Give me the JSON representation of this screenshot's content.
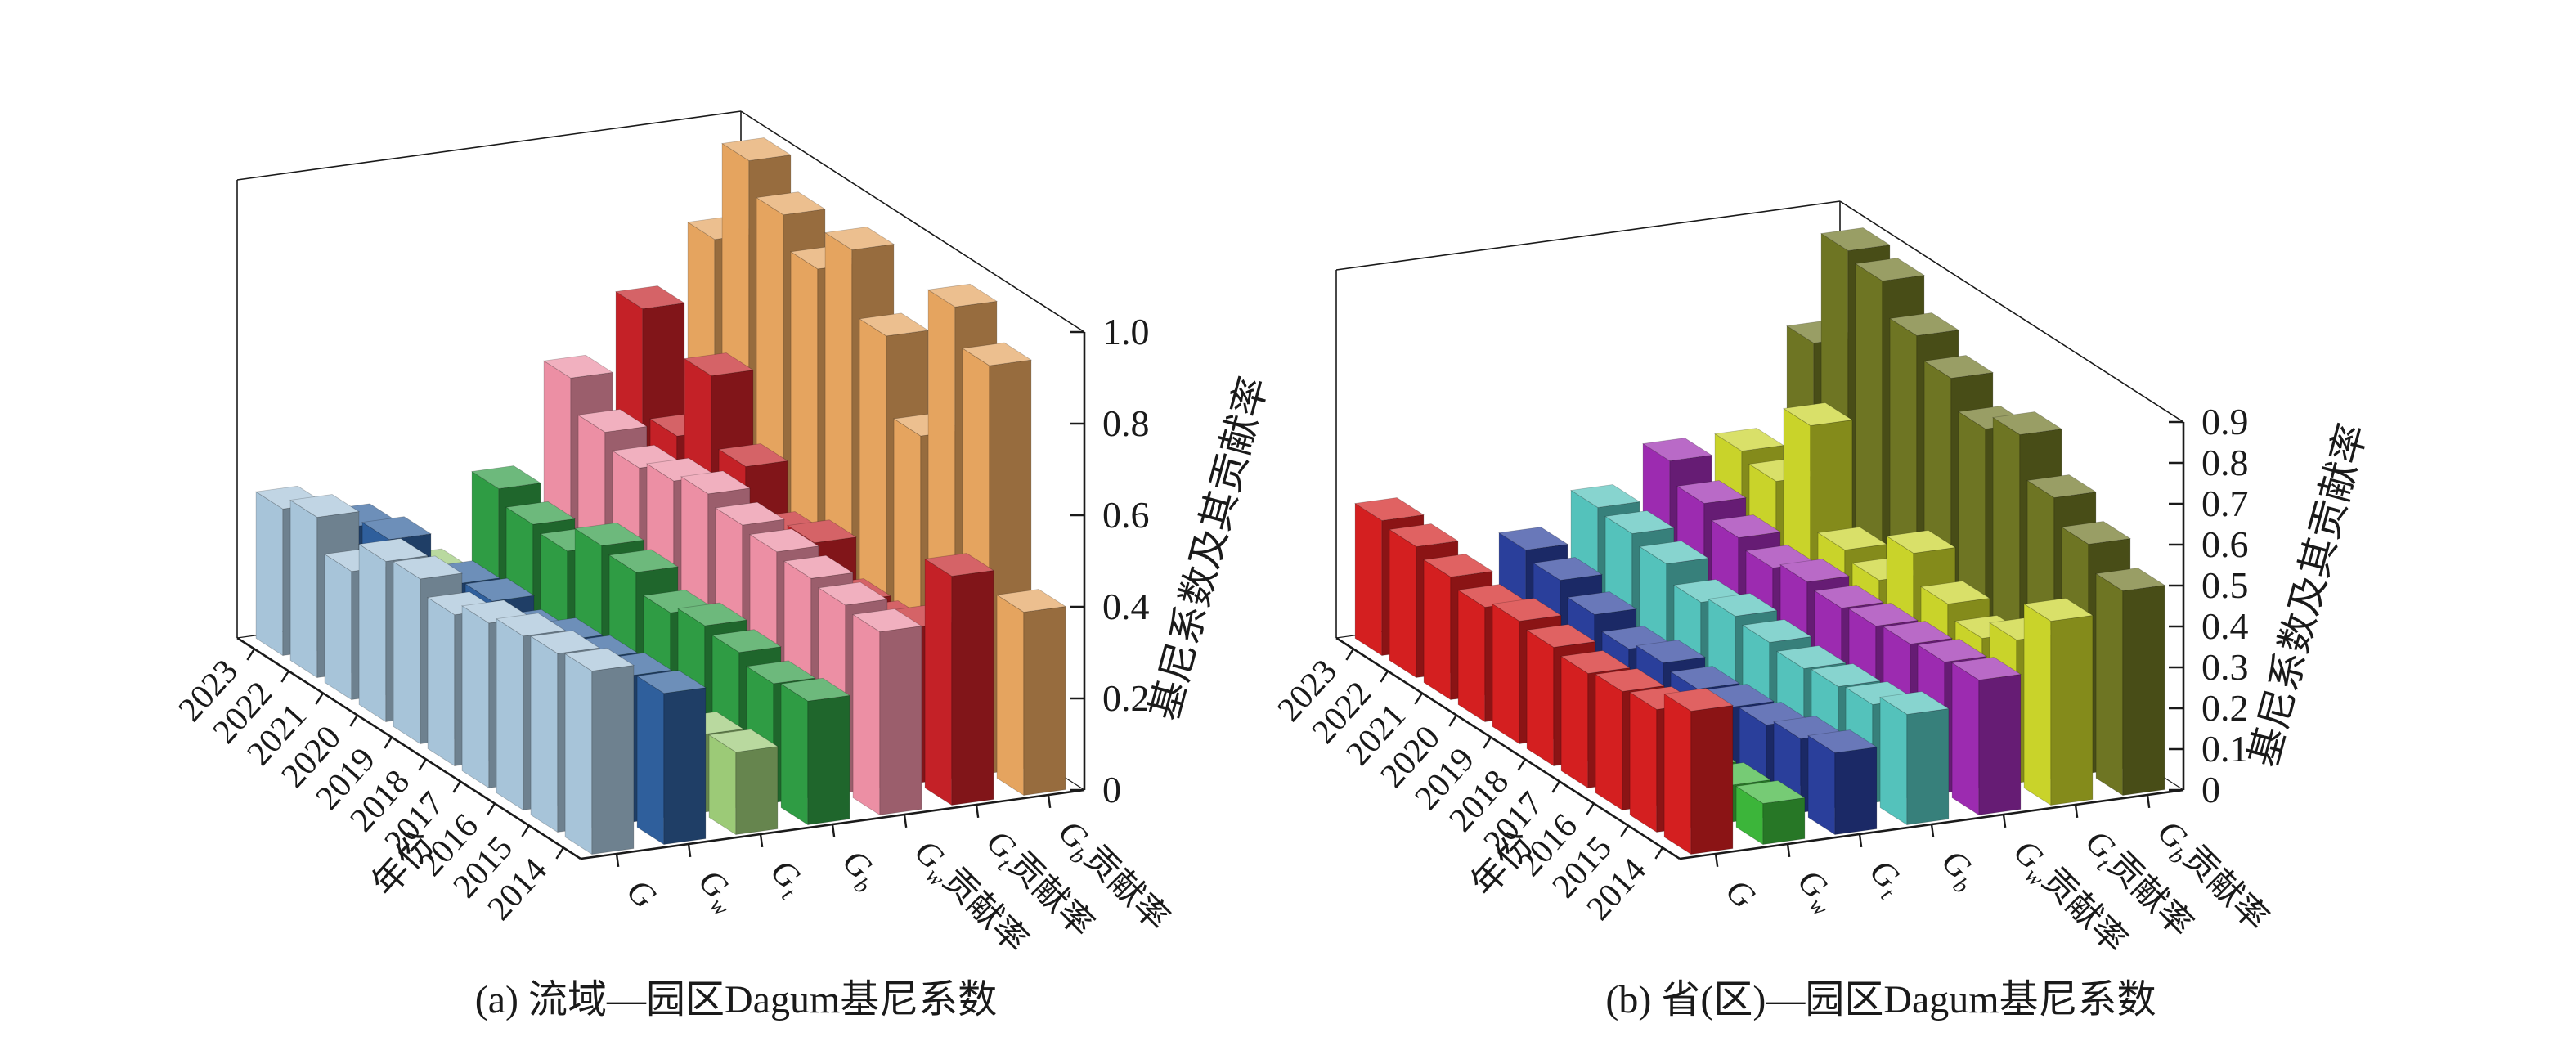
{
  "figure": {
    "background": "#ffffff",
    "axis_color": "#1a1a1a"
  },
  "chart_data": [
    {
      "type": "bar",
      "subtype": "3d-bar-grid",
      "title": "(a) 流域—园区Dagum基尼系数",
      "xlabel": "年份",
      "zlabel": "基尼系数及其贡献率",
      "x": [
        "2014",
        "2015",
        "2016",
        "2017",
        "2018",
        "2019",
        "2020",
        "2021",
        "2022",
        "2023"
      ],
      "zlim": [
        0,
        1.0
      ],
      "ztick": 0.2,
      "ztick_labels": [
        "0",
        "0.2",
        "0.4",
        "0.6",
        "0.8",
        "1.0"
      ],
      "grid": false,
      "legend_position": "none",
      "series": [
        {
          "name": "G",
          "label": {
            "base": "G",
            "sub": "",
            "suffix": ""
          },
          "color": "#A7C4D9",
          "values": [
            0.4,
            0.39,
            0.38,
            0.36,
            0.33,
            0.36,
            0.35,
            0.28,
            0.35,
            0.32
          ]
        },
        {
          "name": "Gw",
          "label": {
            "base": "G",
            "sub": "w",
            "suffix": ""
          },
          "color": "#2F5F9C",
          "values": [
            0.33,
            0.32,
            0.31,
            0.3,
            0.27,
            0.29,
            0.28,
            0.23,
            0.28,
            0.26
          ]
        },
        {
          "name": "Gt",
          "label": {
            "base": "G",
            "sub": "t",
            "suffix": ""
          },
          "color": "#9CCA77",
          "values": [
            0.18,
            0.17,
            0.15,
            0.13,
            0.12,
            0.1,
            0.06,
            0.04,
            0.08,
            0.14
          ]
        },
        {
          "name": "Gb",
          "label": {
            "base": "G",
            "sub": "b",
            "suffix": ""
          },
          "color": "#2F9C44",
          "values": [
            0.27,
            0.26,
            0.28,
            0.29,
            0.27,
            0.31,
            0.32,
            0.26,
            0.27,
            0.3
          ]
        },
        {
          "name": "Gw贡献率",
          "label": {
            "base": "G",
            "sub": "w",
            "suffix": "贡献率"
          },
          "color": "#EC8FA4",
          "values": [
            0.4,
            0.41,
            0.42,
            0.43,
            0.44,
            0.46,
            0.44,
            0.42,
            0.45,
            0.52
          ]
        },
        {
          "name": "Gt贡献率",
          "label": {
            "base": "G",
            "sub": "t",
            "suffix": "贡献率"
          },
          "color": "#C42127",
          "values": [
            0.5,
            0.34,
            0.3,
            0.3,
            0.38,
            0.35,
            0.45,
            0.6,
            0.42,
            0.65
          ]
        },
        {
          "name": "Gb贡献率",
          "label": {
            "base": "G",
            "sub": "b",
            "suffix": "贡献率"
          },
          "color": "#E5A45F",
          "values": [
            0.4,
            0.89,
            0.97,
            0.64,
            0.81,
            0.95,
            0.86,
            0.93,
            1.0,
            0.78
          ]
        }
      ]
    },
    {
      "type": "bar",
      "subtype": "3d-bar-grid",
      "title": "(b) 省(区)—园区Dagum基尼系数",
      "xlabel": "年份",
      "zlabel": "基尼系数及其贡献率",
      "x": [
        "2014",
        "2015",
        "2016",
        "2017",
        "2018",
        "2019",
        "2020",
        "2021",
        "2022",
        "2023"
      ],
      "zlim": [
        0,
        0.9
      ],
      "ztick": 0.1,
      "ztick_labels": [
        "0",
        "0.1",
        "0.2",
        "0.3",
        "0.4",
        "0.5",
        "0.6",
        "0.7",
        "0.8",
        "0.9"
      ],
      "grid": false,
      "legend_position": "none",
      "series": [
        {
          "name": "G",
          "label": {
            "base": "G",
            "sub": "",
            "suffix": ""
          },
          "color": "#D41F20",
          "values": [
            0.35,
            0.3,
            0.29,
            0.28,
            0.29,
            0.3,
            0.28,
            0.3,
            0.32,
            0.33
          ]
        },
        {
          "name": "Gw",
          "label": {
            "base": "G",
            "sub": "w",
            "suffix": ""
          },
          "color": "#3CB53A",
          "values": [
            0.1,
            0.09,
            0.08,
            0.07,
            0.06,
            0.06,
            0.05,
            0.06,
            0.07,
            0.08
          ]
        },
        {
          "name": "Gt",
          "label": {
            "base": "G",
            "sub": "t",
            "suffix": ""
          },
          "color": "#2A3F9B",
          "values": [
            0.2,
            0.18,
            0.16,
            0.15,
            0.14,
            0.15,
            0.13,
            0.16,
            0.19,
            0.21
          ]
        },
        {
          "name": "Gb",
          "label": {
            "base": "G",
            "sub": "b",
            "suffix": ""
          },
          "color": "#54C2BB",
          "values": [
            0.27,
            0.24,
            0.23,
            0.22,
            0.23,
            0.24,
            0.22,
            0.26,
            0.28,
            0.29
          ]
        },
        {
          "name": "Gw贡献率",
          "label": {
            "base": "G",
            "sub": "w",
            "suffix": "贡献率"
          },
          "color": "#9C2BB0",
          "values": [
            0.33,
            0.32,
            0.31,
            0.3,
            0.29,
            0.3,
            0.28,
            0.3,
            0.33,
            0.38
          ]
        },
        {
          "name": "Gt贡献率",
          "label": {
            "base": "G",
            "sub": "t",
            "suffix": "贡献率"
          },
          "color": "#C9D32A",
          "values": [
            0.45,
            0.35,
            0.3,
            0.33,
            0.4,
            0.28,
            0.3,
            0.55,
            0.36,
            0.38
          ]
        },
        {
          "name": "Gb贡献率",
          "label": {
            "base": "G",
            "sub": "b",
            "suffix": "贡献率"
          },
          "color": "#6E7523",
          "values": [
            0.5,
            0.56,
            0.62,
            0.72,
            0.68,
            0.75,
            0.8,
            0.88,
            0.9,
            0.62
          ]
        }
      ]
    }
  ]
}
